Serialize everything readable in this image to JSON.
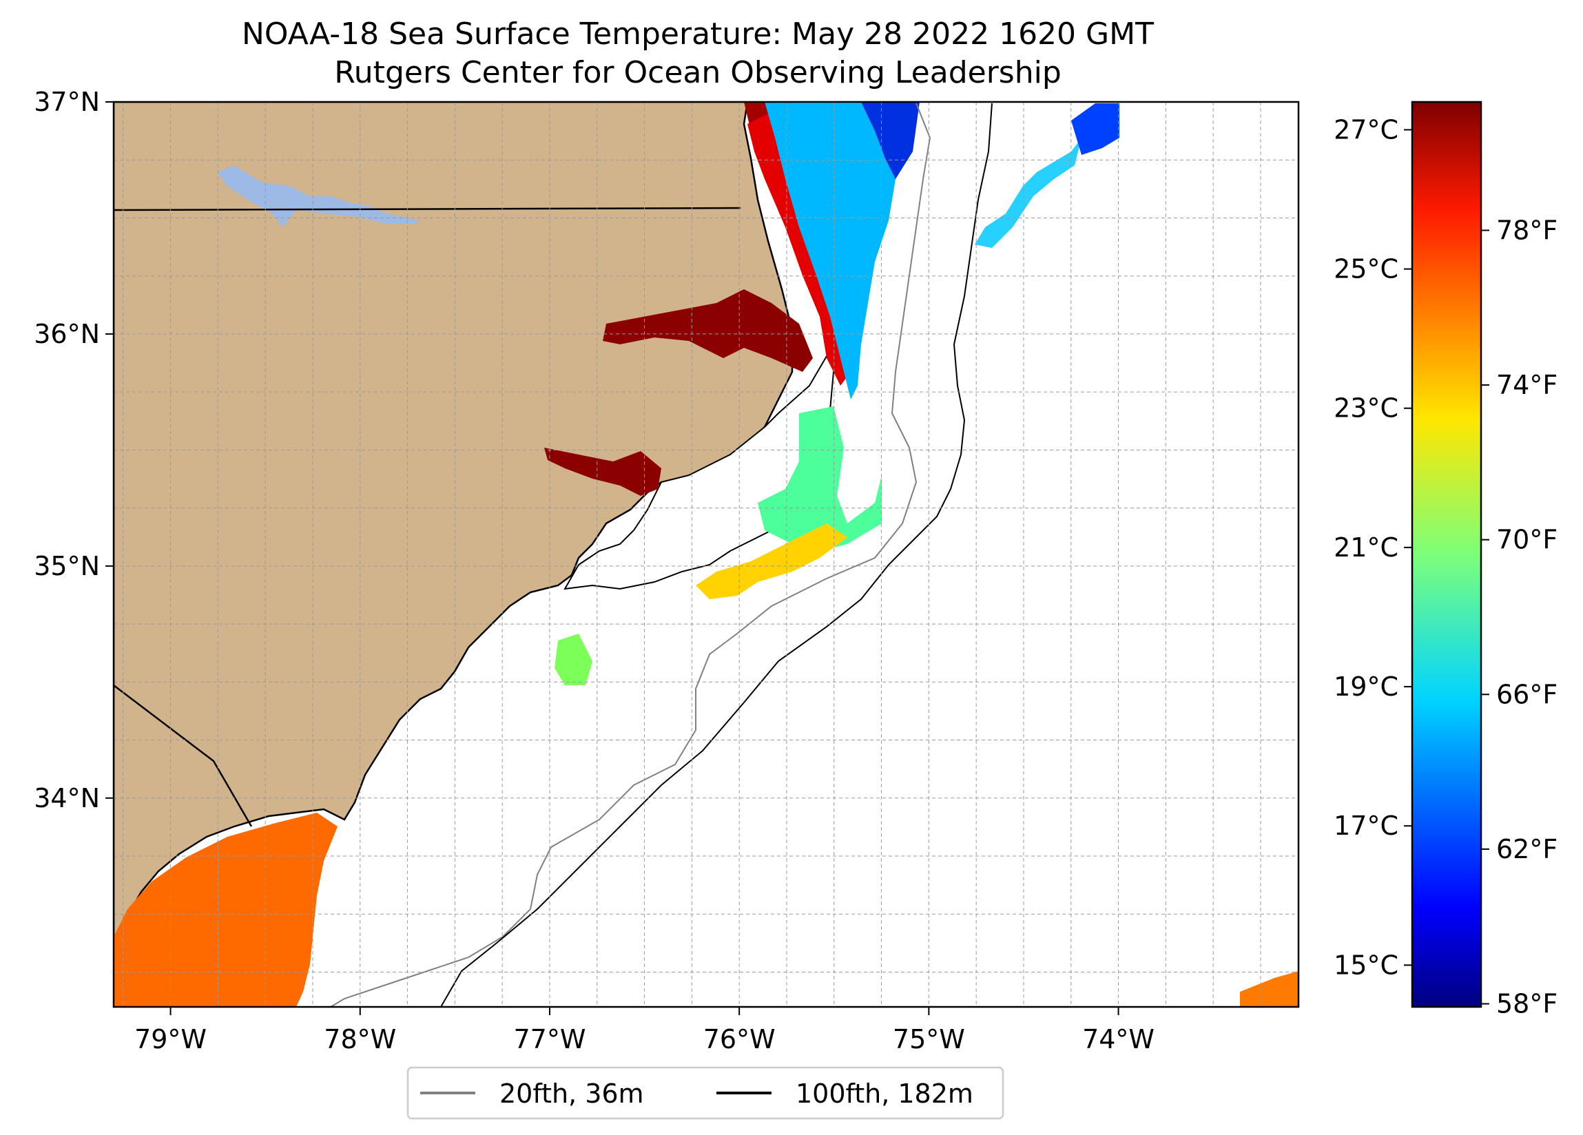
{
  "title": {
    "line1": "NOAA-18 Sea Surface Temperature: May 28 2022 1620 GMT",
    "line2": "Rutgers Center for Ocean Observing Leadership"
  },
  "map": {
    "lon_range": [
      -79.3,
      -73.05
    ],
    "lat_range": [
      33.1,
      37.0
    ],
    "lon_ticks": [
      {
        "value": -79,
        "label": "79°W"
      },
      {
        "value": -78,
        "label": "78°W"
      },
      {
        "value": -77,
        "label": "77°W"
      },
      {
        "value": -76,
        "label": "76°W"
      },
      {
        "value": -75,
        "label": "75°W"
      },
      {
        "value": -74,
        "label": "74°W"
      }
    ],
    "lat_ticks": [
      {
        "value": 37,
        "label": "37°N"
      },
      {
        "value": 36,
        "label": "36°N"
      },
      {
        "value": 35,
        "label": "35°N"
      },
      {
        "value": 34,
        "label": "34°N"
      }
    ],
    "grid": true,
    "land_color": "#d2b48c",
    "lake_color": "#9db9e6",
    "colormap": "jet"
  },
  "colorbar": {
    "celsius_ticks": [
      "27°C",
      "25°C",
      "23°C",
      "21°C",
      "19°C",
      "17°C",
      "15°C"
    ],
    "celsius_values": [
      27,
      25,
      23,
      21,
      19,
      17,
      15
    ],
    "fahrenheit_ticks": [
      "78°F",
      "74°F",
      "70°F",
      "66°F",
      "62°F",
      "58°F"
    ],
    "fahrenheit_values": [
      78,
      74,
      70,
      66,
      62,
      58
    ]
  },
  "legend": {
    "position": "bottom-center",
    "items": [
      {
        "label": "20fth, 36m",
        "color": "#808080"
      },
      {
        "label": "100fth, 182m",
        "color": "#000000"
      }
    ]
  }
}
